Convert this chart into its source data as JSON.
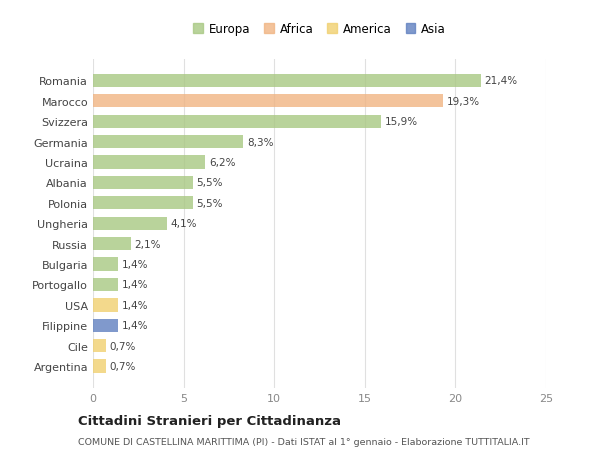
{
  "categories": [
    "Romania",
    "Marocco",
    "Svizzera",
    "Germania",
    "Ucraina",
    "Albania",
    "Polonia",
    "Ungheria",
    "Russia",
    "Bulgaria",
    "Portogallo",
    "USA",
    "Filippine",
    "Cile",
    "Argentina"
  ],
  "values": [
    21.4,
    19.3,
    15.9,
    8.3,
    6.2,
    5.5,
    5.5,
    4.1,
    2.1,
    1.4,
    1.4,
    1.4,
    1.4,
    0.7,
    0.7
  ],
  "labels": [
    "21,4%",
    "19,3%",
    "15,9%",
    "8,3%",
    "6,2%",
    "5,5%",
    "5,5%",
    "4,1%",
    "2,1%",
    "1,4%",
    "1,4%",
    "1,4%",
    "1,4%",
    "0,7%",
    "0,7%"
  ],
  "colors": [
    "#a8c882",
    "#f0b482",
    "#a8c882",
    "#a8c882",
    "#a8c882",
    "#a8c882",
    "#a8c882",
    "#a8c882",
    "#a8c882",
    "#a8c882",
    "#a8c882",
    "#f0d070",
    "#6080c0",
    "#f0d070",
    "#f0d070"
  ],
  "legend_labels": [
    "Europa",
    "Africa",
    "America",
    "Asia"
  ],
  "legend_colors": [
    "#a8c882",
    "#f0b482",
    "#f0d070",
    "#6080c0"
  ],
  "title": "Cittadini Stranieri per Cittadinanza",
  "subtitle": "COMUNE DI CASTELLINA MARITTIMA (PI) - Dati ISTAT al 1° gennaio - Elaborazione TUTTITALIA.IT",
  "xlim": [
    0,
    25
  ],
  "xticks": [
    0,
    5,
    10,
    15,
    20,
    25
  ],
  "bg_color": "#ffffff",
  "grid_color": "#e0e0e0"
}
